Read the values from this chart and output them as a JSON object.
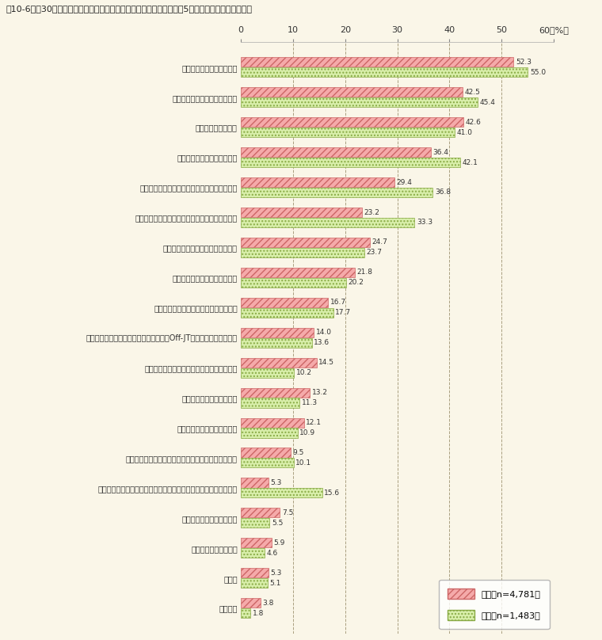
{
  "title_prefix": "図10－6　",
  "title_bracket": "　30代職員調査」",
  "title_main": "自府省に今後更なる改善を期待すること（5つまで回答可）（男女別）",
  "categories": [
    "業務量に応じた職員の配置",
    "業務の合理化、超過勤務の縮減",
    "偏りのない業務分担",
    "職員の適性に応じた人事配置",
    "育児や介護等、家庭の事情に配慮した人事運用",
    "テレワーク、フレックスなど柔軟な働き方の推進",
    "能力・実績に基づく人事管理の徹底",
    "職員の意欲を重視した人事運用",
    "組織間の密な情報共有／臨機応変な連携",
    "外側から業務を見ることができる機会（Off-JT研修、官民交流）の増",
    "国民のニーズを反映したより迅速な意思決定",
    "各担当の所掌範囲の明確化",
    "若手職員の意思決定への参画",
    "マネジメント、コーチングスキルに関する研修の充実",
    "両立支援制度利用中の職員も活躍できる業務進行体制・方法の構築",
    "新たな取組へのチャレンジ",
    "複線型人事管理の推進",
    "その他",
    "特に無い"
  ],
  "male_values": [
    52.3,
    42.5,
    42.6,
    36.4,
    29.4,
    23.2,
    24.7,
    21.8,
    16.7,
    14.0,
    14.5,
    13.2,
    12.1,
    9.5,
    5.3,
    7.5,
    5.9,
    5.3,
    3.8
  ],
  "female_values": [
    55.0,
    45.4,
    41.0,
    42.1,
    36.8,
    33.3,
    23.7,
    20.2,
    17.7,
    13.6,
    10.2,
    11.3,
    10.9,
    10.1,
    15.6,
    5.5,
    4.6,
    5.1,
    1.8
  ],
  "male_color": "#f5aaaa",
  "female_color": "#d8eeaa",
  "male_edge_color": "#cc6666",
  "female_edge_color": "#88aa44",
  "male_hatch": "////",
  "female_hatch": "....",
  "male_label": "男性（n=4,781）",
  "female_label": "女性（n=1,483）",
  "xlim": [
    0,
    60
  ],
  "xticks": [
    0,
    10,
    20,
    30,
    40,
    50,
    60
  ],
  "xlabel_unit": "60（％）",
  "background_color": "#faf6e8",
  "plot_bg_color": "#faf6e8",
  "grid_color": "#aaa080",
  "bar_height": 0.32,
  "title_color": "#222222",
  "label_color": "#333333",
  "figsize": [
    7.6,
    8.08
  ],
  "dpi": 100
}
